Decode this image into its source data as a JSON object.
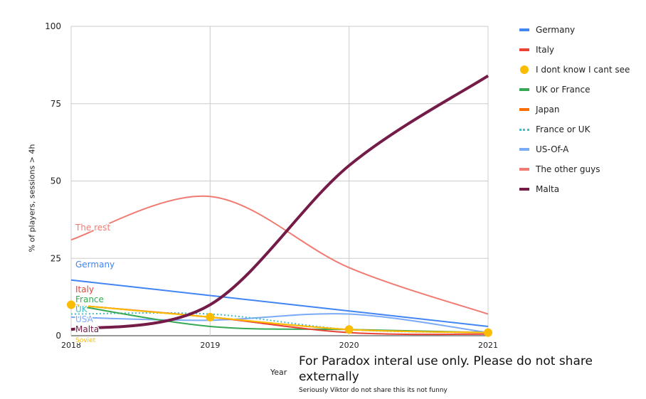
{
  "chart_data": {
    "type": "line",
    "title": "",
    "xlabel": "Year",
    "ylabel": "% of players, sessions > 4h",
    "x": [
      "2018",
      "2019",
      "2020",
      "2021"
    ],
    "ylim": [
      0,
      100
    ],
    "yticks": [
      0,
      25,
      50,
      75,
      100
    ],
    "grid": true,
    "legend_position": "right",
    "series": [
      {
        "name": "Germany",
        "color": "#4285f4",
        "style": "line",
        "values": [
          18,
          13,
          8,
          3
        ]
      },
      {
        "name": "Italy",
        "color": "#ea4335",
        "style": "line",
        "values": [
          10,
          6,
          1,
          0.5
        ]
      },
      {
        "name": "I dont know I cant see",
        "color": "#fbbc04",
        "style": "markers",
        "values": [
          10,
          6,
          2,
          1
        ]
      },
      {
        "name": "UK or France",
        "color": "#34a853",
        "style": "line",
        "values": [
          10,
          3,
          2,
          1
        ]
      },
      {
        "name": "Japan",
        "color": "#ff6d01",
        "style": "line",
        "values": [
          10,
          6,
          2,
          1
        ]
      },
      {
        "name": "France or UK",
        "color": "#46bdc6",
        "style": "dotted",
        "values": [
          7,
          7,
          2,
          1
        ]
      },
      {
        "name": "US-Of-A",
        "color": "#7baaf7",
        "style": "line",
        "values": [
          6,
          5,
          7,
          1
        ]
      },
      {
        "name": "The other guys",
        "color": "#f07b72",
        "style": "line",
        "values": [
          31,
          45,
          22,
          7
        ]
      },
      {
        "name": "Malta",
        "color": "#741b47",
        "style": "thick",
        "values": [
          2,
          10,
          55,
          84
        ]
      }
    ],
    "annotations": [
      {
        "text": "The rest",
        "color": "#f07b72",
        "y": 35
      },
      {
        "text": "Germany",
        "color": "#4285f4",
        "y": 23
      },
      {
        "text": "Italy",
        "color": "#ea4335",
        "y": 15
      },
      {
        "text": "France",
        "color": "#34a853",
        "y": 15
      },
      {
        "text": "UK",
        "color": "#46bdc6",
        "y": 12.5
      },
      {
        "text": "USA",
        "color": "#7baaf7",
        "y": 11
      },
      {
        "text": "Malta",
        "color": "#741b47",
        "y": 7
      },
      {
        "text": "Soviet",
        "color": "#fbbc04",
        "y": 4
      }
    ]
  },
  "footer": {
    "note": "For Paradox interal use only. Please do not share externally",
    "subnote": "Seriously Viktor do not share this its not funny"
  }
}
